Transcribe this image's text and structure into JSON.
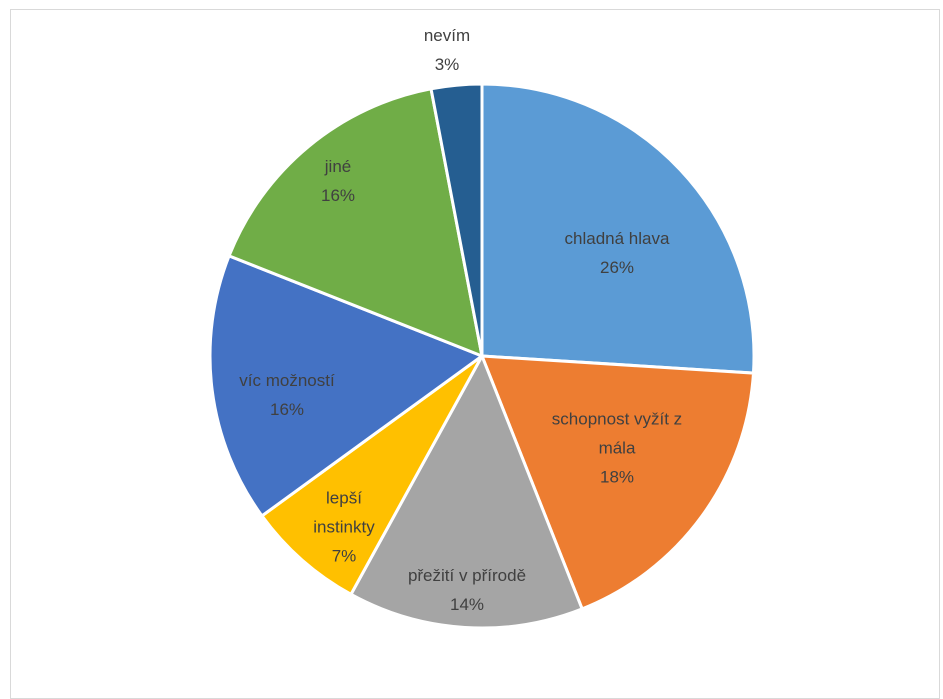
{
  "chart_data": {
    "type": "pie",
    "title": "",
    "show_legend": false,
    "start_angle_deg": 0,
    "direction": "clockwise",
    "slices": [
      {
        "label_lines": [
          "chladná hlava"
        ],
        "percent_label": "26%",
        "value": 26,
        "color": "#5B9BD5"
      },
      {
        "label_lines": [
          "schopnost vyžít z",
          "mála"
        ],
        "percent_label": "18%",
        "value": 18,
        "color": "#ED7D31"
      },
      {
        "label_lines": [
          "přežití v přírodě"
        ],
        "percent_label": "14%",
        "value": 14,
        "color": "#A5A5A5"
      },
      {
        "label_lines": [
          "lepší",
          "instinkty"
        ],
        "percent_label": "7%",
        "value": 7,
        "color": "#FFC000"
      },
      {
        "label_lines": [
          "víc možností"
        ],
        "percent_label": "16%",
        "value": 16,
        "color": "#4472C4"
      },
      {
        "label_lines": [
          "jiné"
        ],
        "percent_label": "16%",
        "value": 16,
        "color": "#70AD47"
      },
      {
        "label_lines": [
          "nevím"
        ],
        "percent_label": "3%",
        "value": 3,
        "color": "#255E91"
      }
    ]
  }
}
